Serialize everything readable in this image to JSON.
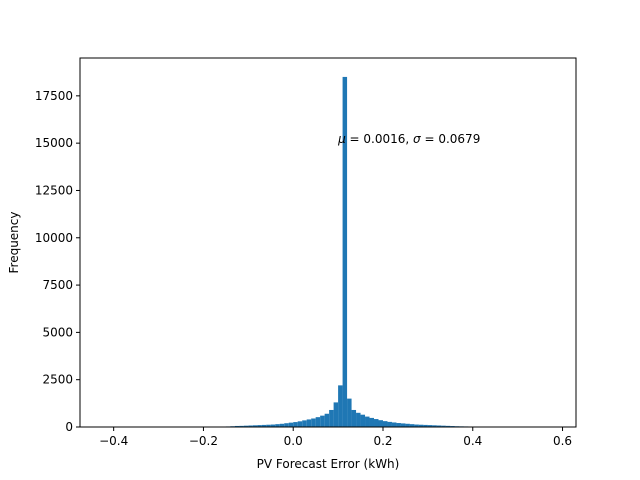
{
  "chart_data": {
    "type": "bar",
    "title": "",
    "xlabel": "PV Forecast Error (kWh)",
    "ylabel": "Frequency",
    "xlim": [
      -0.475,
      0.63
    ],
    "ylim": [
      0,
      19500
    ],
    "xticks": [
      -0.4,
      -0.2,
      0.0,
      0.2,
      0.4,
      0.6
    ],
    "xtick_labels": [
      "−0.4",
      "−0.2",
      "0.0",
      "0.2",
      "0.4",
      "0.6"
    ],
    "yticks": [
      0,
      2500,
      5000,
      7500,
      10000,
      12500,
      15000,
      17500
    ],
    "ytick_labels": [
      "0",
      "2500",
      "5000",
      "7500",
      "10000",
      "12500",
      "15000",
      "17500"
    ],
    "annotation": {
      "mu_symbol": "μ",
      "mu_text": " = 0.0016,  ",
      "sigma_symbol": "σ",
      "sigma_text": " = 0.0679",
      "x": 0.1,
      "y": 15000
    },
    "bins": {
      "start": -0.45,
      "width": 0.01,
      "counts": [
        0,
        0,
        0,
        0,
        0,
        0,
        0,
        0,
        0,
        0,
        0,
        0,
        0,
        0,
        0,
        0,
        0,
        0,
        0,
        0,
        2,
        2,
        3,
        3,
        5,
        5,
        8,
        10,
        15,
        20,
        30,
        40,
        55,
        60,
        70,
        80,
        90,
        100,
        110,
        120,
        130,
        150,
        170,
        200,
        230,
        260,
        300,
        350,
        400,
        450,
        520,
        600,
        700,
        900,
        1300,
        2200,
        18500,
        1500,
        900,
        750,
        650,
        550,
        480,
        420,
        360,
        310,
        270,
        240,
        210,
        190,
        170,
        150,
        130,
        120,
        110,
        100,
        90,
        80,
        70,
        60,
        50,
        40,
        35,
        30,
        25,
        20,
        15,
        12,
        10,
        8,
        6,
        5,
        4,
        3,
        3,
        2,
        2,
        1,
        1,
        1,
        0,
        0,
        0,
        0,
        0,
        0,
        0,
        0,
        0,
        0,
        0,
        0,
        0,
        0
      ]
    },
    "colors": {
      "bar": "#1f77b4",
      "axis": "#000000",
      "background": "#ffffff"
    }
  }
}
